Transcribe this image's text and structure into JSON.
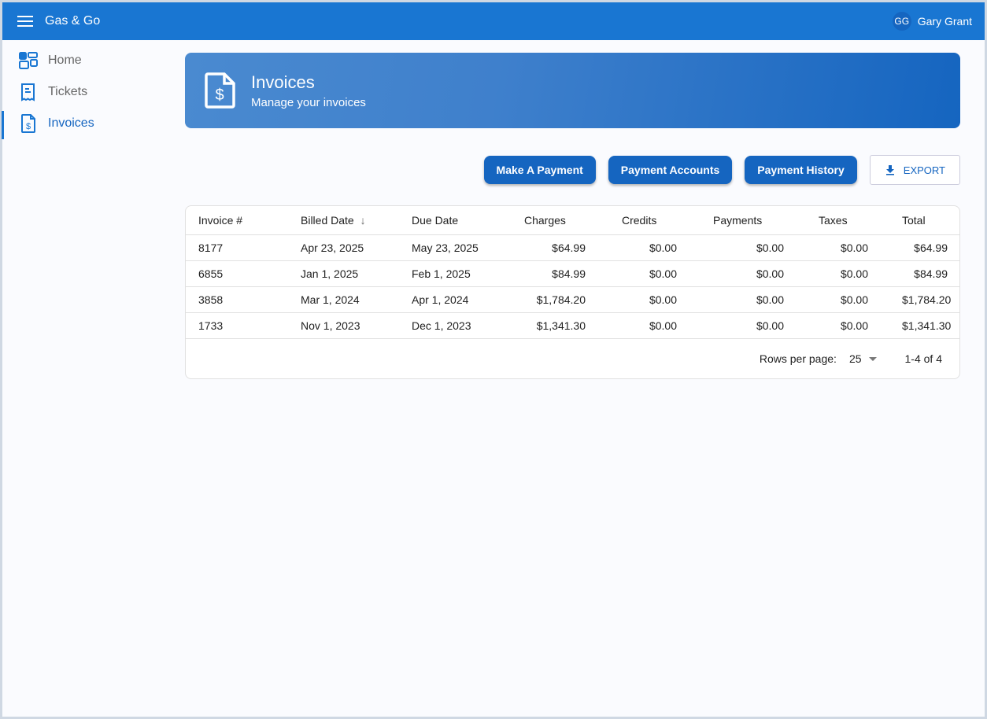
{
  "app": {
    "title": "Gas & Go",
    "user_name": "Gary Grant",
    "user_initials": "GG",
    "accent": "#1976d2"
  },
  "sidebar": {
    "items": [
      {
        "label": "Home",
        "icon": "dashboard-icon"
      },
      {
        "label": "Tickets",
        "icon": "receipt-icon"
      },
      {
        "label": "Invoices",
        "icon": "invoice-dollar-icon",
        "active": true
      }
    ]
  },
  "hero": {
    "title": "Invoices",
    "subtitle": "Manage your invoices"
  },
  "actions": {
    "make_payment": "Make A Payment",
    "payment_accounts": "Payment Accounts",
    "payment_history": "Payment History",
    "export": "EXPORT"
  },
  "table": {
    "columns": [
      "Invoice #",
      "Billed Date",
      "Due Date",
      "Charges",
      "Credits",
      "Payments",
      "Taxes",
      "Total"
    ],
    "sort": {
      "column": "Billed Date",
      "direction": "desc"
    },
    "rows": [
      [
        "8177",
        "Apr 23, 2025",
        "May 23, 2025",
        "$64.99",
        "$0.00",
        "$0.00",
        "$0.00",
        "$64.99"
      ],
      [
        "6855",
        "Jan 1, 2025",
        "Feb 1, 2025",
        "$84.99",
        "$0.00",
        "$0.00",
        "$0.00",
        "$84.99"
      ],
      [
        "3858",
        "Mar 1, 2024",
        "Apr 1, 2024",
        "$1,784.20",
        "$0.00",
        "$0.00",
        "$0.00",
        "$1,784.20"
      ],
      [
        "1733",
        "Nov 1, 2023",
        "Dec 1, 2023",
        "$1,341.30",
        "$0.00",
        "$0.00",
        "$0.00",
        "$1,341.30"
      ]
    ],
    "rows_per_page_label": "Rows per page:",
    "rows_per_page": "25",
    "range": "1-4 of 4"
  }
}
